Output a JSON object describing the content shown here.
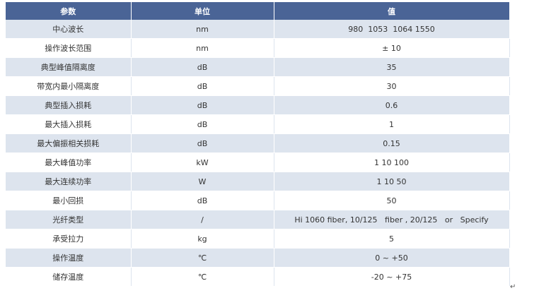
{
  "table": {
    "header": [
      "参数",
      "单位",
      "值"
    ],
    "rows": [
      [
        "中心波长",
        "nm",
        "980  1053  1064 1550"
      ],
      [
        "操作波长范围",
        "nm",
        "± 10"
      ],
      [
        "典型峰值隔离度",
        "dB",
        "35"
      ],
      [
        "带宽内最小隔离度",
        "dB",
        "30"
      ],
      [
        "典型插入损耗",
        "dB",
        "0.6"
      ],
      [
        "最大插入损耗",
        "dB",
        "1"
      ],
      [
        "最大偏振相关损耗",
        "dB",
        "0.15"
      ],
      [
        "最大峰值功率",
        "kW",
        "1 10 100"
      ],
      [
        "最大连续功率",
        "W",
        "1 10 50"
      ],
      [
        "最小回损",
        "dB",
        "50"
      ],
      [
        "光纤类型",
        "/",
        "Hi 1060 fiber, 10/125   fiber , 20/125   or   Specify"
      ],
      [
        "承受拉力",
        "kg",
        "5"
      ],
      [
        "操作温度",
        "℃",
        "0 ~ +50"
      ],
      [
        "储存温度",
        "℃",
        "-20 ~ +75"
      ]
    ],
    "end_mark": "↵"
  }
}
